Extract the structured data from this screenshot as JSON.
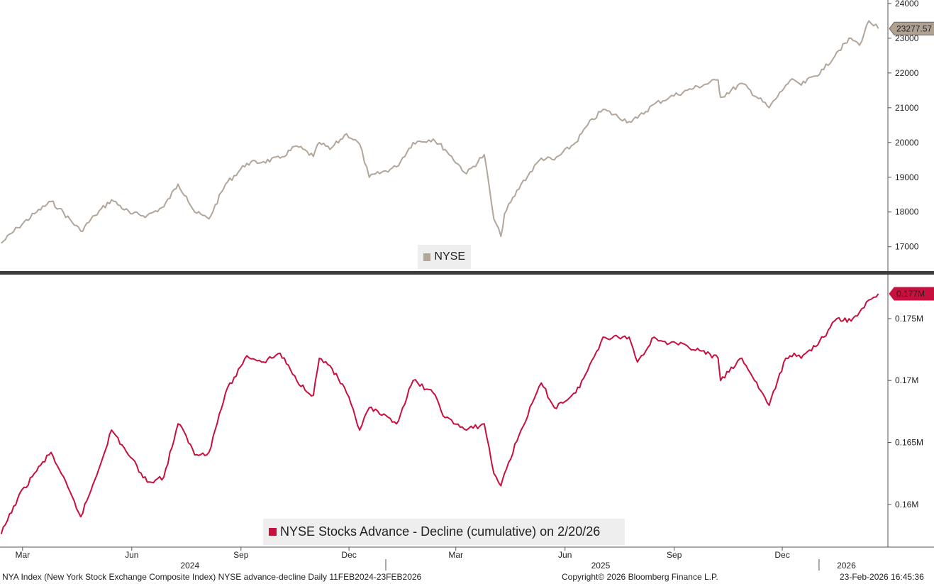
{
  "colors": {
    "nyse": "#b2a69a",
    "adline": "#c8103e",
    "divider": "#3c3c3c",
    "axis": "#555555",
    "legend_bg": "#eeeeee"
  },
  "legend": {
    "top": "NYSE",
    "bottom": "NYSE Stocks Advance - Decline (cumulative) on 2/20/26"
  },
  "footer": {
    "left": "NYA Index (New York Stock Exchange Composite Index) NYSE advance-decline Daily 11FEB2024-23FEB2026",
    "center": "Copyright© 2026 Bloomberg Finance L.P.",
    "right": "23-Feb-2026 16:45:36"
  },
  "chart_data": [
    {
      "type": "line",
      "name": "NYSE",
      "ylim": [
        16300,
        24100
      ],
      "yticks": [
        17000,
        18000,
        19000,
        20000,
        21000,
        22000,
        23000,
        24000
      ],
      "last_value_label": "23277.57",
      "last_value": 23277.57,
      "x": [
        "2024-02-12",
        "2024-02-26",
        "2024-03-11",
        "2024-03-25",
        "2024-04-01",
        "2024-04-19",
        "2024-05-01",
        "2024-05-15",
        "2024-05-31",
        "2024-06-14",
        "2024-06-28",
        "2024-07-10",
        "2024-07-17",
        "2024-07-24",
        "2024-08-05",
        "2024-08-19",
        "2024-09-06",
        "2024-09-20",
        "2024-10-04",
        "2024-10-18",
        "2024-11-01",
        "2024-11-06",
        "2024-11-15",
        "2024-11-29",
        "2024-12-10",
        "2024-12-18",
        "2025-01-10",
        "2025-01-24",
        "2025-02-10",
        "2025-02-20",
        "2025-03-10",
        "2025-03-25",
        "2025-04-02",
        "2025-04-08",
        "2025-04-11",
        "2025-04-25",
        "2025-05-12",
        "2025-05-23",
        "2025-06-10",
        "2025-06-20",
        "2025-07-03",
        "2025-07-25",
        "2025-08-01",
        "2025-08-15",
        "2025-08-28",
        "2025-09-12",
        "2025-10-08",
        "2025-10-10",
        "2025-10-28",
        "2025-11-20",
        "2025-12-04",
        "2025-12-11",
        "2025-12-17",
        "2026-01-05",
        "2026-01-16",
        "2026-01-28",
        "2026-02-04",
        "2026-02-12",
        "2026-02-20"
      ],
      "values": [
        17100,
        17550,
        17950,
        18300,
        18100,
        17450,
        17900,
        18350,
        17950,
        17900,
        18150,
        18800,
        18450,
        18000,
        17800,
        18800,
        19400,
        19450,
        19550,
        19900,
        19600,
        20000,
        19800,
        20250,
        19950,
        19000,
        19300,
        20000,
        20100,
        19800,
        19100,
        19650,
        17800,
        17300,
        17950,
        18800,
        19550,
        19500,
        20000,
        20500,
        20950,
        20600,
        20700,
        21100,
        21300,
        21500,
        21800,
        21300,
        21700,
        21000,
        21650,
        21800,
        21650,
        22100,
        22600,
        23000,
        22800,
        23500,
        23277.57
      ]
    },
    {
      "type": "line",
      "name": "NYSE Stocks Advance - Decline (cumulative) on 2/20/26",
      "ylim": [
        0.15655,
        0.17855
      ],
      "yticks": [
        0.16,
        0.165,
        0.17,
        0.175
      ],
      "ytick_labels": [
        "0.16M",
        "0.165M",
        "0.17M",
        "0.175M"
      ],
      "last_value_label": "0.177M",
      "last_value": 0.177,
      "x": [
        "2024-02-12",
        "2024-02-26",
        "2024-03-11",
        "2024-03-25",
        "2024-04-01",
        "2024-04-19",
        "2024-05-01",
        "2024-05-15",
        "2024-05-31",
        "2024-06-14",
        "2024-06-28",
        "2024-07-10",
        "2024-07-17",
        "2024-07-24",
        "2024-08-05",
        "2024-08-19",
        "2024-09-06",
        "2024-09-20",
        "2024-10-04",
        "2024-10-18",
        "2024-11-01",
        "2024-11-06",
        "2024-11-15",
        "2024-11-29",
        "2024-12-10",
        "2024-12-18",
        "2025-01-10",
        "2025-01-24",
        "2025-02-10",
        "2025-02-20",
        "2025-03-10",
        "2025-03-25",
        "2025-04-02",
        "2025-04-08",
        "2025-04-11",
        "2025-04-25",
        "2025-05-12",
        "2025-05-23",
        "2025-06-10",
        "2025-06-20",
        "2025-07-03",
        "2025-07-25",
        "2025-08-01",
        "2025-08-15",
        "2025-08-28",
        "2025-09-12",
        "2025-10-08",
        "2025-10-10",
        "2025-10-28",
        "2025-11-20",
        "2025-12-04",
        "2025-12-11",
        "2025-12-17",
        "2026-01-05",
        "2026-01-16",
        "2026-01-28",
        "2026-02-04",
        "2026-02-12",
        "2026-02-20"
      ],
      "values": [
        0.1576,
        0.1605,
        0.1625,
        0.1642,
        0.1628,
        0.159,
        0.162,
        0.166,
        0.1638,
        0.1618,
        0.1622,
        0.1665,
        0.1655,
        0.164,
        0.1642,
        0.169,
        0.172,
        0.1715,
        0.1722,
        0.17,
        0.1688,
        0.1718,
        0.1712,
        0.169,
        0.166,
        0.1678,
        0.1665,
        0.17,
        0.169,
        0.167,
        0.166,
        0.1665,
        0.1625,
        0.1615,
        0.1625,
        0.166,
        0.1698,
        0.1678,
        0.169,
        0.1708,
        0.1735,
        0.1735,
        0.1715,
        0.1735,
        0.173,
        0.1728,
        0.1718,
        0.17,
        0.1718,
        0.168,
        0.1718,
        0.1722,
        0.1718,
        0.1735,
        0.175,
        0.1748,
        0.1755,
        0.1765,
        0.177
      ]
    }
  ],
  "x_axis": {
    "range": [
      "2024-02-11",
      "2026-02-28"
    ],
    "months": [
      {
        "label": "Mar",
        "date": "2024-03-01"
      },
      {
        "label": "Jun",
        "date": "2024-06-01"
      },
      {
        "label": "Sep",
        "date": "2024-09-01"
      },
      {
        "label": "Dec",
        "date": "2024-12-01"
      },
      {
        "label": "Mar",
        "date": "2025-03-01"
      },
      {
        "label": "Jun",
        "date": "2025-06-01"
      },
      {
        "label": "Sep",
        "date": "2025-09-01"
      },
      {
        "label": "Dec",
        "date": "2025-12-01"
      }
    ],
    "years": [
      {
        "label": "2024",
        "date": "2024-07-20"
      },
      {
        "label": "2025",
        "date": "2025-07-01"
      },
      {
        "label": "2026",
        "date": "2026-01-24"
      }
    ],
    "year_separators": [
      "2025-01-01",
      "2026-01-01"
    ]
  }
}
